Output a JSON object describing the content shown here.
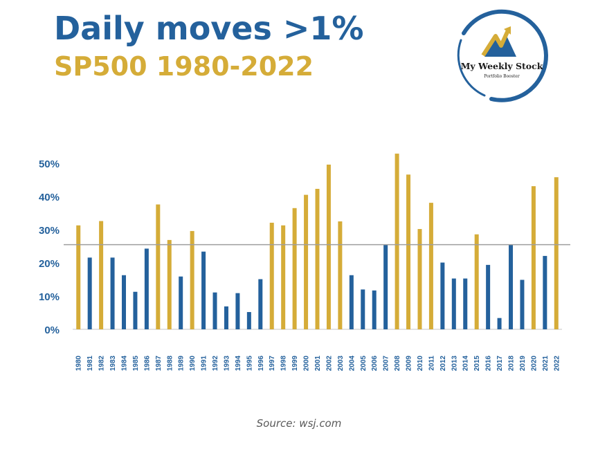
{
  "header": {
    "title": "Daily moves >1%",
    "subtitle": "SP500 1980-2022"
  },
  "logo": {
    "name": "My Weekly Stock",
    "tagline": "Portfolio Booster"
  },
  "source": "Source: wsj.com",
  "colors": {
    "above": "#d5ac38",
    "below": "#24619c",
    "title": "#24619c",
    "subtitle": "#d5ac38",
    "reference_line": "#9e9e9e"
  },
  "chart_data": {
    "type": "bar",
    "categories": [
      "1980",
      "1981",
      "1982",
      "1983",
      "1984",
      "1985",
      "1986",
      "1987",
      "1988",
      "1989",
      "1990",
      "1991",
      "1992",
      "1993",
      "1994",
      "1995",
      "1996",
      "1997",
      "1998",
      "1999",
      "2000",
      "2001",
      "2002",
      "2003",
      "2004",
      "2005",
      "2006",
      "2007",
      "2008",
      "2009",
      "2010",
      "2011",
      "2012",
      "2013",
      "2014",
      "2015",
      "2016",
      "2017",
      "2018",
      "2019",
      "2020",
      "2021",
      "2022"
    ],
    "values": [
      31.3,
      21.6,
      32.6,
      21.6,
      16.3,
      11.3,
      24.3,
      37.6,
      26.9,
      15.9,
      29.6,
      23.4,
      11.1,
      6.9,
      10.9,
      5.2,
      15.1,
      32.1,
      31.3,
      36.5,
      40.5,
      42.3,
      49.6,
      32.5,
      16.3,
      12.0,
      11.7,
      25.5,
      52.9,
      46.6,
      30.2,
      38.1,
      20.1,
      15.3,
      15.3,
      28.6,
      19.4,
      3.4,
      25.5,
      14.9,
      43.1,
      22.1,
      45.8
    ],
    "reference_value": 25.5,
    "ylim": [
      0,
      55
    ],
    "yticks": [
      "0%",
      "10%",
      "20%",
      "30%",
      "40%",
      "50%"
    ],
    "ytick_values": [
      0,
      10,
      20,
      30,
      40,
      50
    ],
    "grid": false,
    "legend": "none"
  }
}
